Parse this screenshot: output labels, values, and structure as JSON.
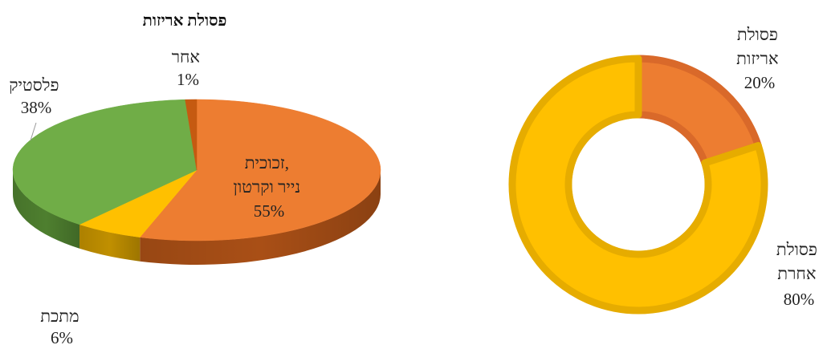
{
  "chart_data": [
    {
      "type": "pie",
      "style": "3d",
      "title": "פסולת אריזות",
      "slices": [
        {
          "name": "זכוכית, נייר וקרטון",
          "lines": [
            "זכוכית,",
            "נייר וקרטון"
          ],
          "value": 55,
          "label": "55%",
          "color": "#ED7D31",
          "side_color": "#A94F16"
        },
        {
          "name": "מתכת",
          "lines": [
            "מתכת"
          ],
          "value": 6,
          "label": "6%",
          "color": "#FFC000",
          "side_color": "#C08F00"
        },
        {
          "name": "פלסטיק",
          "lines": [
            "פלסטיק"
          ],
          "value": 38,
          "label": "38%",
          "color": "#70AD47",
          "side_color": "#4E7F2F"
        },
        {
          "name": "אחר",
          "lines": [
            "אחר"
          ],
          "value": 1,
          "label": "1%",
          "color": "#C55A11",
          "side_color": "#8A3C0A"
        }
      ]
    },
    {
      "type": "pie",
      "style": "doughnut",
      "title": "",
      "slices": [
        {
          "name": "פסולת אריזות",
          "lines": [
            "פסולת",
            "אריזות"
          ],
          "value": 20,
          "label": "20%",
          "color": "#ED7D31",
          "border_color": "#D9692A"
        },
        {
          "name": "פסולת אחרת",
          "lines": [
            "פסולת",
            "אחרת"
          ],
          "value": 80,
          "label": "80%",
          "color": "#FFC000",
          "border_color": "#E6AC00"
        }
      ]
    }
  ]
}
